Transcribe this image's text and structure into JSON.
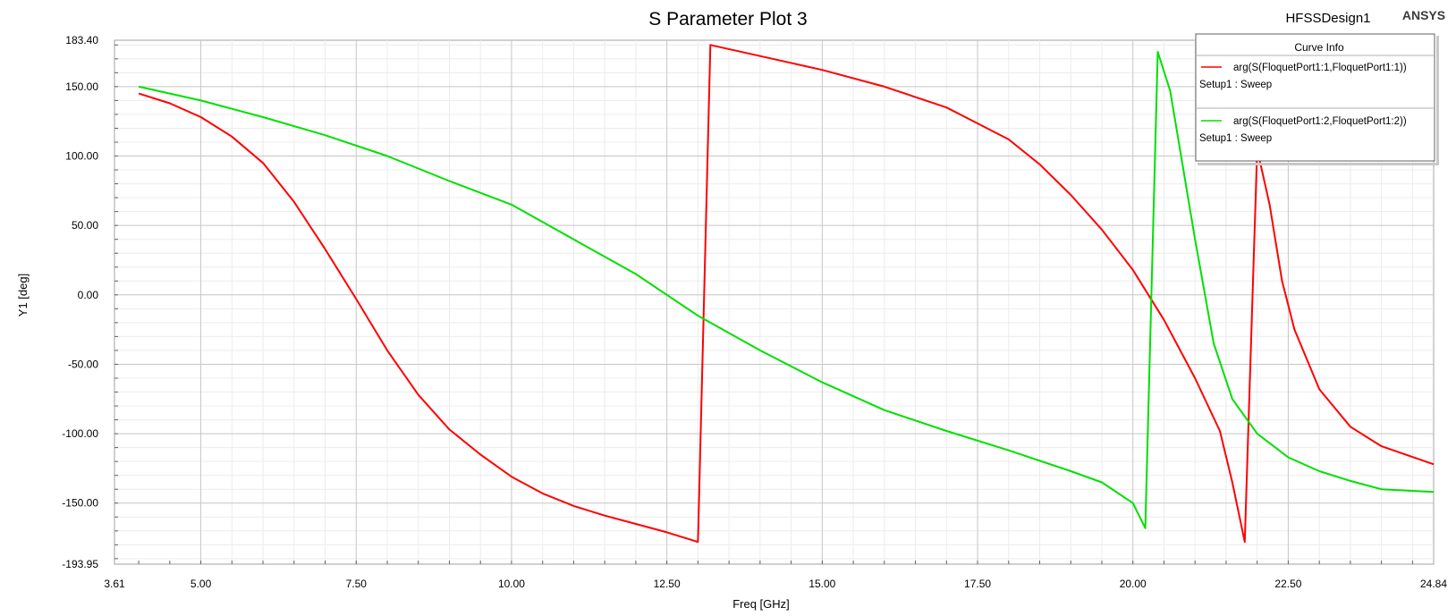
{
  "header": {
    "title": "S Parameter Plot 3",
    "design_name": "HFSSDesign1",
    "brand": "ANSYS"
  },
  "legend": {
    "title": "Curve Info",
    "entries": [
      {
        "trace": "arg(S(FloquetPort1:1,FloquetPort1:1))",
        "setup": "Setup1 : Sweep",
        "color": "#ff0000"
      },
      {
        "trace": "arg(S(FloquetPort1:2,FloquetPort1:2))",
        "setup": "Setup1 : Sweep",
        "color": "#00e000"
      }
    ]
  },
  "chart_data": {
    "type": "line",
    "title": "S Parameter Plot 3",
    "xlabel": "Freq [GHz]",
    "ylabel": "Y1 [deg]",
    "xlim": [
      3.61,
      24.84
    ],
    "ylim": [
      -193.95,
      183.4
    ],
    "xticks": [
      "3.61",
      "5.00",
      "7.50",
      "10.00",
      "12.50",
      "15.00",
      "17.50",
      "20.00",
      "22.50",
      "24.84"
    ],
    "yticks": [
      "183.40",
      "150.00",
      "100.00",
      "50.00",
      "0.00",
      "-50.00",
      "-100.00",
      "-150.00",
      "-193.95"
    ],
    "grid": true,
    "legend_position": "top-right",
    "series": [
      {
        "name": "arg(S(FloquetPort1:1,FloquetPort1:1))",
        "color": "#ff0000",
        "points": [
          [
            4.0,
            145
          ],
          [
            4.5,
            138
          ],
          [
            5.0,
            128
          ],
          [
            5.5,
            114
          ],
          [
            6.0,
            95
          ],
          [
            6.5,
            67
          ],
          [
            7.0,
            33
          ],
          [
            7.5,
            -3
          ],
          [
            8.0,
            -40
          ],
          [
            8.5,
            -72
          ],
          [
            9.0,
            -97
          ],
          [
            9.5,
            -115
          ],
          [
            10.0,
            -131
          ],
          [
            10.5,
            -143
          ],
          [
            11.0,
            -152
          ],
          [
            11.5,
            -159
          ],
          [
            12.0,
            -165
          ],
          [
            12.5,
            -171
          ],
          [
            13.0,
            -178
          ],
          [
            13.2,
            180
          ],
          [
            14.0,
            172
          ],
          [
            15.0,
            162
          ],
          [
            16.0,
            150
          ],
          [
            17.0,
            135
          ],
          [
            18.0,
            112
          ],
          [
            18.5,
            94
          ],
          [
            19.0,
            72
          ],
          [
            19.5,
            47
          ],
          [
            20.0,
            18
          ],
          [
            20.5,
            -18
          ],
          [
            21.0,
            -60
          ],
          [
            21.4,
            -98
          ],
          [
            21.6,
            -135
          ],
          [
            21.8,
            -178
          ],
          [
            22.0,
            105
          ],
          [
            22.2,
            65
          ],
          [
            22.4,
            10
          ],
          [
            22.6,
            -25
          ],
          [
            23.0,
            -68
          ],
          [
            23.5,
            -95
          ],
          [
            24.0,
            -109
          ],
          [
            24.84,
            -122
          ]
        ]
      },
      {
        "name": "arg(S(FloquetPort1:2,FloquetPort1:2))",
        "color": "#00e000",
        "points": [
          [
            4.0,
            150
          ],
          [
            5.0,
            140
          ],
          [
            6.0,
            128
          ],
          [
            7.0,
            115
          ],
          [
            8.0,
            100
          ],
          [
            9.0,
            82
          ],
          [
            10.0,
            65
          ],
          [
            11.0,
            40
          ],
          [
            12.0,
            15
          ],
          [
            13.0,
            -15
          ],
          [
            14.0,
            -40
          ],
          [
            15.0,
            -63
          ],
          [
            16.0,
            -83
          ],
          [
            17.0,
            -98
          ],
          [
            18.0,
            -112
          ],
          [
            19.0,
            -127
          ],
          [
            19.5,
            -135
          ],
          [
            20.0,
            -150
          ],
          [
            20.2,
            -168
          ],
          [
            20.4,
            175
          ],
          [
            20.6,
            147
          ],
          [
            21.0,
            40
          ],
          [
            21.3,
            -35
          ],
          [
            21.6,
            -75
          ],
          [
            22.0,
            -100
          ],
          [
            22.5,
            -117
          ],
          [
            23.0,
            -127
          ],
          [
            23.5,
            -134
          ],
          [
            24.0,
            -140
          ],
          [
            24.84,
            -142
          ]
        ]
      }
    ]
  }
}
